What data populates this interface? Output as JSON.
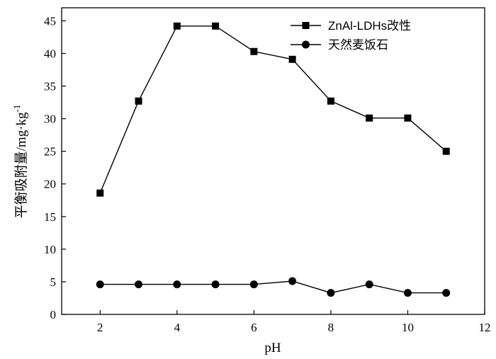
{
  "chart_data": {
    "type": "line",
    "xlabel": "pH",
    "ylabel_main": "平衡吸附量/mg·kg",
    "ylabel_sup": "-1",
    "xlim": [
      1,
      12
    ],
    "ylim": [
      0,
      47
    ],
    "xticks": [
      2,
      4,
      6,
      8,
      10,
      12
    ],
    "yticks": [
      0,
      5,
      10,
      15,
      20,
      25,
      30,
      35,
      40,
      45
    ],
    "grid": false,
    "legend_position": "top-right",
    "series": [
      {
        "name": "ZnAl-LDHs改性",
        "marker": "square",
        "color": "#000000",
        "x": [
          2,
          3,
          4,
          5,
          6,
          7,
          8,
          9,
          10,
          11
        ],
        "y": [
          18.6,
          32.7,
          44.2,
          44.2,
          40.3,
          39.1,
          32.7,
          30.1,
          30.1,
          25.0
        ]
      },
      {
        "name": "天然麦饭石",
        "marker": "circle",
        "color": "#000000",
        "x": [
          2,
          3,
          4,
          5,
          6,
          7,
          8,
          9,
          10,
          11
        ],
        "y": [
          4.6,
          4.6,
          4.6,
          4.6,
          4.6,
          5.1,
          3.3,
          4.6,
          3.3,
          3.3
        ]
      }
    ]
  }
}
